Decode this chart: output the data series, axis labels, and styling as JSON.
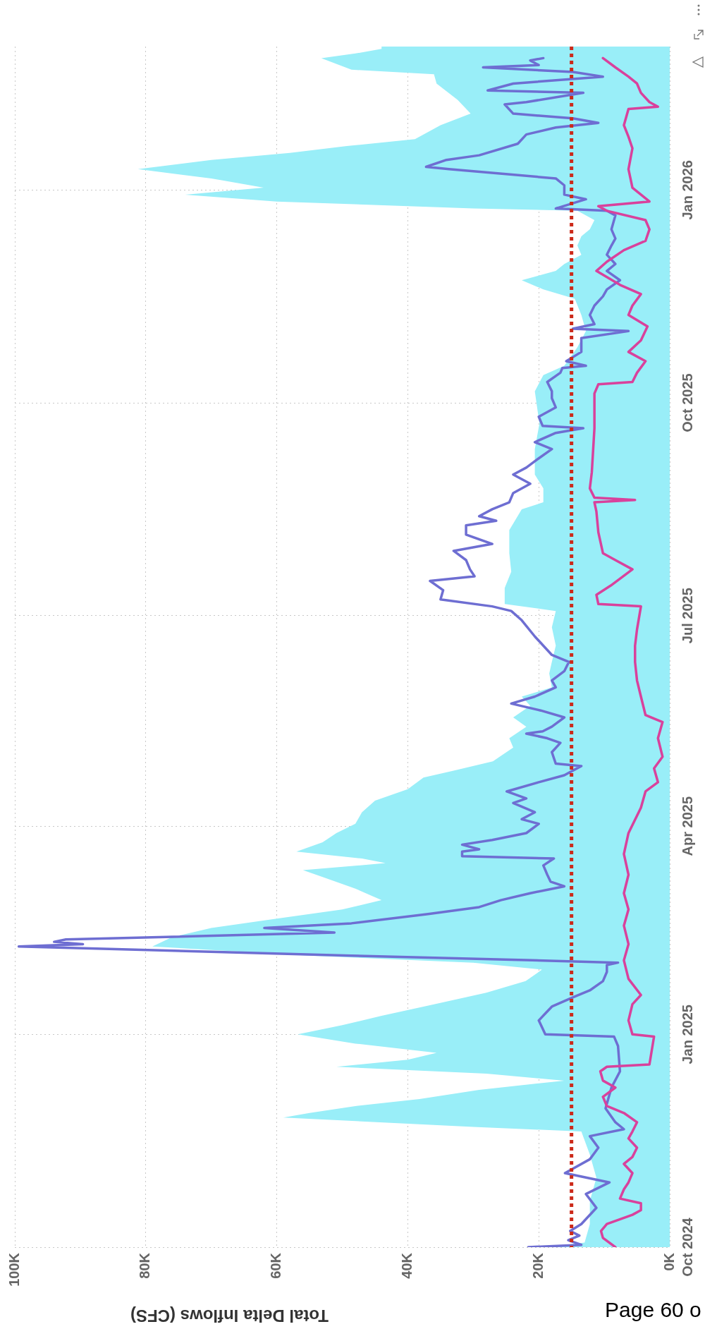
{
  "chart_data": {
    "type": "line",
    "orientation": "horizontal",
    "xlabel": "Total Delta Inflows (CFS)",
    "grid": true,
    "ylim": [
      "2024-10-01",
      "2026-03-04"
    ],
    "yticks": [
      {
        "value": "2024-10-01",
        "label": "Oct 2024"
      },
      {
        "value": "2025-01-01",
        "label": "Jan 2025"
      },
      {
        "value": "2025-04-01",
        "label": "Apr 2025"
      },
      {
        "value": "2025-07-01",
        "label": "Jul 2025"
      },
      {
        "value": "2025-10-01",
        "label": "Oct 2025"
      },
      {
        "value": "2026-01-01",
        "label": "Jan 2026"
      }
    ],
    "xlim": [
      100000,
      0
    ],
    "xticks": [
      {
        "value": 100000,
        "label": "100K"
      },
      {
        "value": 80000,
        "label": "80K"
      },
      {
        "value": 60000,
        "label": "60K"
      },
      {
        "value": 40000,
        "label": "40K"
      },
      {
        "value": 20000,
        "label": "20K"
      },
      {
        "value": 0,
        "label": "0K"
      }
    ],
    "ref_lines": [
      {
        "axis": "x",
        "value": 15000,
        "color": "#cc2a1a",
        "line_style": "dotted"
      }
    ],
    "annotations": [
      "Page 60 o"
    ],
    "series": [
      {
        "type": "area",
        "color": "#99eef8",
        "x": [
          "2024-10-01",
          "2024-10-03",
          "2024-10-11",
          "2024-10-21",
          "2024-10-31",
          "2024-11-10",
          "2024-11-20",
          "2024-11-22",
          "2024-11-26",
          "2024-11-28",
          "2024-12-01",
          "2024-12-04",
          "2024-12-08",
          "2024-12-12",
          "2024-12-15",
          "2024-12-18",
          "2024-12-21",
          "2024-12-24",
          "2024-12-28",
          "2025-01-01",
          "2025-01-05",
          "2025-01-09",
          "2025-01-14",
          "2025-01-19",
          "2025-01-24",
          "2025-01-29",
          "2025-02-01",
          "2025-02-04",
          "2025-02-08",
          "2025-02-12",
          "2025-02-16",
          "2025-02-20",
          "2025-02-24",
          "2025-02-28",
          "2025-03-05",
          "2025-03-10",
          "2025-03-13",
          "2025-03-16",
          "2025-03-18",
          "2025-03-21",
          "2025-03-25",
          "2025-03-29",
          "2025-04-02",
          "2025-04-07",
          "2025-04-12",
          "2025-04-17",
          "2025-04-22",
          "2025-04-25",
          "2025-04-29",
          "2025-05-05",
          "2025-05-09",
          "2025-05-14",
          "2025-05-18",
          "2025-05-23",
          "2025-05-27",
          "2025-05-31",
          "2025-06-06",
          "2025-06-11",
          "2025-06-18",
          "2025-06-26",
          "2025-07-03",
          "2025-07-06",
          "2025-07-13",
          "2025-07-20",
          "2025-07-28",
          "2025-08-07",
          "2025-08-16",
          "2025-08-19",
          "2025-08-25",
          "2025-08-31",
          "2025-09-11",
          "2025-09-22",
          "2025-10-06",
          "2025-10-13",
          "2025-10-17",
          "2025-10-25",
          "2025-11-01",
          "2025-11-08",
          "2025-11-15",
          "2025-11-19",
          "2025-11-23",
          "2025-11-27",
          "2025-11-30",
          "2025-12-04",
          "2025-12-08",
          "2025-12-12",
          "2025-12-15",
          "2025-12-19",
          "2025-12-23",
          "2025-12-24",
          "2025-12-27",
          "2025-12-30",
          "2026-01-02",
          "2026-01-06",
          "2026-01-10",
          "2026-01-14",
          "2026-01-17",
          "2026-01-20",
          "2026-01-23",
          "2026-01-29",
          "2026-02-03",
          "2026-02-09",
          "2026-02-16",
          "2026-02-20",
          "2026-02-22",
          "2026-02-27",
          "2026-03-01",
          "2026-03-03",
          "2026-03-04"
        ],
        "values": [
          18700,
          13000,
          12200,
          12200,
          11200,
          12200,
          13500,
          30000,
          59000,
          55000,
          48000,
          38200,
          29100,
          16100,
          28000,
          50900,
          40000,
          35600,
          48000,
          56800,
          50000,
          44000,
          36000,
          28000,
          22000,
          19500,
          30000,
          55000,
          79000,
          76000,
          70000,
          60000,
          50000,
          44000,
          48000,
          53000,
          56000,
          43400,
          47000,
          57000,
          53000,
          50900,
          48000,
          47000,
          45000,
          40000,
          37600,
          33000,
          27000,
          23900,
          24500,
          21900,
          23900,
          21300,
          22600,
          18000,
          18400,
          18000,
          17400,
          18000,
          17400,
          25200,
          25200,
          24200,
          24500,
          24500,
          22600,
          19300,
          19300,
          20600,
          20600,
          19900,
          20600,
          19300,
          16100,
          14100,
          12800,
          13500,
          14500,
          19300,
          22600,
          17400,
          16100,
          13500,
          14100,
          13500,
          12200,
          11500,
          14100,
          30000,
          60000,
          74000,
          62000,
          70000,
          81200,
          70000,
          58000,
          49300,
          38900,
          35000,
          30400,
          32400,
          35600,
          36000,
          48600,
          53200,
          48000,
          44000,
          44000
        ]
      },
      {
        "type": "line",
        "color": "#6e6ed2",
        "x": [
          "2024-10-01",
          "2024-10-02",
          "2024-10-04",
          "2024-10-06",
          "2024-10-08",
          "2024-10-11",
          "2024-10-18",
          "2024-10-24",
          "2024-10-29",
          "2024-11-02",
          "2024-11-08",
          "2024-11-13",
          "2024-11-18",
          "2024-11-21",
          "2024-11-24",
          "2024-11-30",
          "2024-12-09",
          "2024-12-16",
          "2024-12-27",
          "2024-12-31",
          "2025-01-01",
          "2025-01-07",
          "2025-01-10",
          "2025-01-13",
          "2025-01-17",
          "2025-01-20",
          "2025-01-24",
          "2025-01-28",
          "2025-01-31",
          "2025-02-01",
          "2025-02-02",
          "2025-02-04",
          "2025-02-08",
          "2025-02-09",
          "2025-02-10",
          "2025-02-11",
          "2025-02-14",
          "2025-02-16",
          "2025-02-18",
          "2025-02-22",
          "2025-02-25",
          "2025-02-28",
          "2025-03-03",
          "2025-03-06",
          "2025-03-08",
          "2025-03-11",
          "2025-03-15",
          "2025-03-18",
          "2025-03-19",
          "2025-03-21",
          "2025-03-22",
          "2025-03-24",
          "2025-03-26",
          "2025-03-29",
          "2025-04-02",
          "2025-04-04",
          "2025-04-07",
          "2025-04-11",
          "2025-04-13",
          "2025-04-16",
          "2025-04-20",
          "2025-04-23",
          "2025-04-27",
          "2025-04-28",
          "2025-05-03",
          "2025-05-07",
          "2025-05-09",
          "2025-05-11",
          "2025-05-12",
          "2025-05-14",
          "2025-05-18",
          "2025-05-21",
          "2025-05-24",
          "2025-05-27",
          "2025-05-31",
          "2025-06-03",
          "2025-06-07",
          "2025-06-11",
          "2025-06-14",
          "2025-06-22",
          "2025-06-29",
          "2025-07-03",
          "2025-07-05",
          "2025-07-08",
          "2025-07-12",
          "2025-07-16",
          "2025-07-18",
          "2025-07-21",
          "2025-07-25",
          "2025-07-29",
          "2025-08-01",
          "2025-08-05",
          "2025-08-09",
          "2025-08-11",
          "2025-08-13",
          "2025-08-16",
          "2025-08-19",
          "2025-08-23",
          "2025-08-27",
          "2025-08-31",
          "2025-09-03",
          "2025-09-07",
          "2025-09-11",
          "2025-09-14",
          "2025-09-18",
          "2025-09-20",
          "2025-09-21",
          "2025-09-25",
          "2025-09-29",
          "2025-10-03",
          "2025-10-06",
          "2025-10-10",
          "2025-10-14",
          "2025-10-16",
          "2025-10-17",
          "2025-10-19",
          "2025-10-23",
          "2025-10-29",
          "2025-11-01",
          "2025-11-02",
          "2025-11-04",
          "2025-11-08",
          "2025-11-12",
          "2025-11-16",
          "2025-11-19",
          "2025-11-23",
          "2025-11-27",
          "2025-11-30",
          "2025-12-04",
          "2025-12-08",
          "2025-12-11",
          "2025-12-15",
          "2025-12-21",
          "2025-12-23",
          "2025-12-24",
          "2025-12-28",
          "2025-12-30",
          "2026-01-03",
          "2026-01-06",
          "2026-01-10",
          "2026-01-11",
          "2026-01-14",
          "2026-01-16",
          "2026-01-21",
          "2026-01-25",
          "2026-01-28",
          "2026-01-30",
          "2026-02-01",
          "2026-02-03",
          "2026-02-07",
          "2026-02-08",
          "2026-02-12",
          "2026-02-13",
          "2026-02-16",
          "2026-02-19",
          "2026-02-21",
          "2026-02-23",
          "2026-02-24",
          "2026-02-26",
          "2026-02-27"
        ],
        "values": [
          21600,
          13500,
          15500,
          13800,
          15200,
          13500,
          11200,
          12800,
          9200,
          16000,
          12200,
          10900,
          12200,
          7000,
          8300,
          9800,
          8900,
          7600,
          7900,
          8500,
          19000,
          20000,
          19000,
          18000,
          14800,
          12200,
          10200,
          9600,
          9600,
          7900,
          21000,
          48600,
          99400,
          89600,
          94000,
          92200,
          51200,
          61900,
          48600,
          36900,
          29100,
          25800,
          21300,
          16100,
          18200,
          18700,
          19300,
          17700,
          31700,
          31700,
          29100,
          31700,
          27100,
          21900,
          20000,
          22600,
          20600,
          23900,
          21900,
          24900,
          20000,
          16100,
          13500,
          17400,
          18000,
          16700,
          18700,
          21900,
          19400,
          18000,
          16100,
          19700,
          24200,
          20600,
          17400,
          18000,
          16100,
          15400,
          18000,
          20600,
          22600,
          24200,
          27100,
          35000,
          34600,
          36600,
          29800,
          30500,
          31100,
          33000,
          27100,
          31100,
          31100,
          26500,
          29100,
          27100,
          24500,
          23900,
          21300,
          23900,
          21900,
          20000,
          18000,
          20600,
          17400,
          13200,
          19400,
          20000,
          17400,
          18000,
          18000,
          18700,
          16700,
          16400,
          12800,
          15800,
          13500,
          13500,
          6300,
          14800,
          11500,
          12200,
          11500,
          10200,
          9600,
          7600,
          9600,
          8300,
          9600,
          8900,
          8300,
          8900,
          8300,
          9600,
          17400,
          12800,
          16100,
          16100,
          17400,
          33700,
          37200,
          34100,
          29100,
          23200,
          21900,
          17400,
          10900,
          14800,
          23900,
          25200,
          21900,
          13200,
          27800,
          23900,
          10200,
          14800,
          28500,
          20000,
          21300,
          19300
        ]
      },
      {
        "type": "line",
        "color": "#d9419c",
        "x": [
          "2024-10-01",
          "2024-10-05",
          "2024-10-08",
          "2024-10-11",
          "2024-10-15",
          "2024-10-17",
          "2024-10-20",
          "2024-10-22",
          "2024-10-26",
          "2024-10-29",
          "2024-11-02",
          "2024-11-06",
          "2024-11-09",
          "2024-11-13",
          "2024-11-17",
          "2024-11-20",
          "2024-11-24",
          "2024-11-28",
          "2024-12-01",
          "2024-12-05",
          "2024-12-09",
          "2024-12-12",
          "2024-12-16",
          "2024-12-18",
          "2024-12-19",
          "2024-12-31",
          "2025-01-01",
          "2025-01-07",
          "2025-01-14",
          "2025-01-18",
          "2025-01-25",
          "2025-02-02",
          "2025-02-09",
          "2025-02-17",
          "2025-02-24",
          "2025-03-03",
          "2025-03-11",
          "2025-03-20",
          "2025-03-29",
          "2025-04-09",
          "2025-04-16",
          "2025-04-20",
          "2025-04-26",
          "2025-05-01",
          "2025-05-09",
          "2025-05-16",
          "2025-05-19",
          "2025-05-27",
          "2025-06-03",
          "2025-06-11",
          "2025-06-18",
          "2025-06-25",
          "2025-07-05",
          "2025-07-06",
          "2025-07-10",
          "2025-07-14",
          "2025-07-21",
          "2025-07-25",
          "2025-07-28",
          "2025-08-06",
          "2025-08-15",
          "2025-08-19",
          "2025-08-20",
          "2025-08-21",
          "2025-08-25",
          "2025-09-01",
          "2025-09-20",
          "2025-10-05",
          "2025-10-09",
          "2025-10-10",
          "2025-10-14",
          "2025-10-19",
          "2025-10-23",
          "2025-10-28",
          "2025-11-03",
          "2025-11-08",
          "2025-11-12",
          "2025-11-17",
          "2025-11-21",
          "2025-11-27",
          "2025-12-01",
          "2025-12-06",
          "2025-12-10",
          "2025-12-15",
          "2025-12-19",
          "2025-12-23",
          "2025-12-25",
          "2025-12-27",
          "2025-12-30",
          "2026-01-02",
          "2026-01-10",
          "2026-01-19",
          "2026-01-24",
          "2026-01-29",
          "2026-02-05",
          "2026-02-06",
          "2026-02-08",
          "2026-02-12",
          "2026-02-16",
          "2026-02-19",
          "2026-02-23",
          "2026-02-27"
        ],
        "values": [
          8300,
          10200,
          10500,
          9600,
          5700,
          4400,
          4400,
          7600,
          7000,
          6300,
          5700,
          7000,
          5700,
          5000,
          6300,
          5700,
          5000,
          7000,
          9600,
          10200,
          8300,
          10200,
          10600,
          9600,
          3100,
          2400,
          5700,
          6300,
          5700,
          4400,
          6300,
          7000,
          6300,
          7000,
          6300,
          7000,
          6300,
          7000,
          6300,
          4400,
          3700,
          1800,
          2400,
          1100,
          1800,
          1100,
          3700,
          4400,
          5000,
          5300,
          5300,
          5000,
          4400,
          10900,
          11200,
          9000,
          5700,
          8300,
          10200,
          10900,
          11200,
          11500,
          5300,
          11500,
          12200,
          11900,
          11500,
          11500,
          10900,
          5700,
          5000,
          3700,
          6300,
          4400,
          3400,
          6300,
          5700,
          4400,
          7600,
          11200,
          9600,
          7000,
          3700,
          3100,
          3700,
          9600,
          10900,
          3100,
          4400,
          5700,
          6300,
          5700,
          6300,
          7000,
          6300,
          1800,
          3100,
          4400,
          5000,
          6300,
          8300,
          10200
        ]
      }
    ]
  }
}
